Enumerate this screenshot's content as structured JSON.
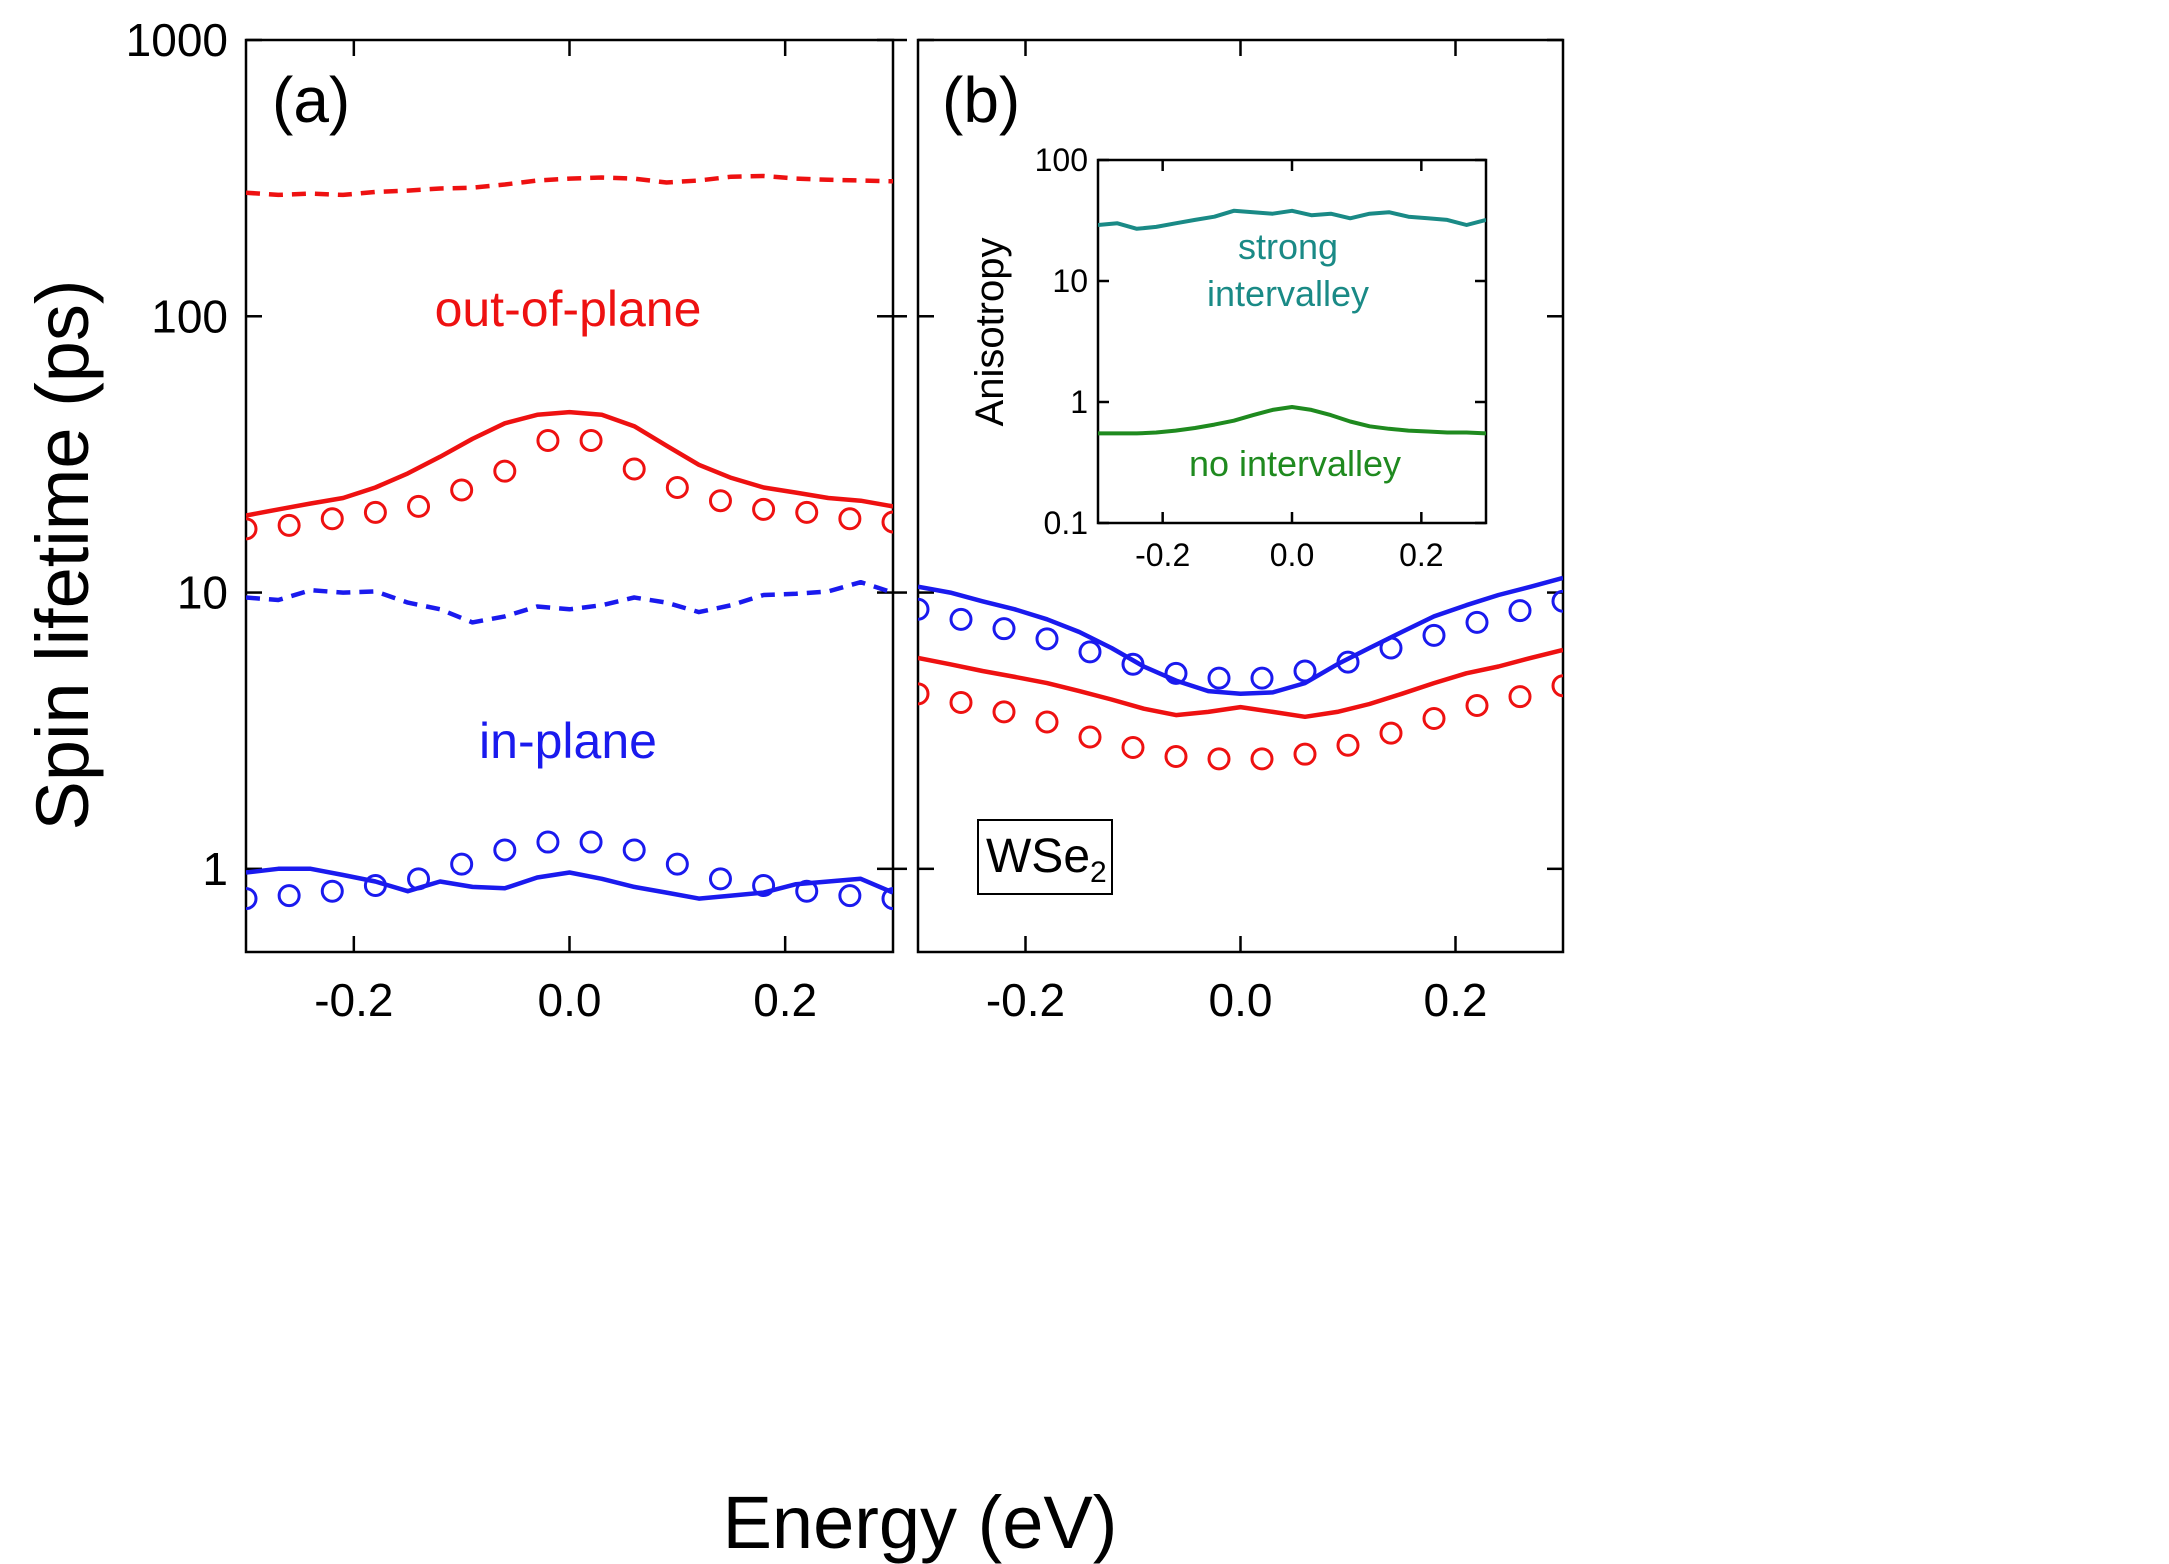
{
  "figure": {
    "xlabel": "Energy (eV)",
    "ylabel": "Spin lifetime (ps)",
    "material_label": "WSe",
    "material_subscript": "2",
    "annotation_out_of_plane": "out-of-plane",
    "annotation_in_plane": "in-plane",
    "colors": {
      "red": "#ee1111",
      "blue": "#1a1aee",
      "teal": "#1a8a86",
      "green": "#1f8a1f",
      "axis": "#000000"
    }
  },
  "chart_data": [
    {
      "type": "line",
      "panel": "(a)",
      "title": "",
      "xlabel": "Energy (eV)",
      "ylabel": "Spin lifetime (ps)",
      "xlim": [
        -0.3,
        0.3
      ],
      "ylim": [
        0.5,
        1000
      ],
      "yscale": "log",
      "xticks": [
        -0.2,
        0.0,
        0.2
      ],
      "xtick_labels": [
        "-0.2",
        "0.0",
        "0.2"
      ],
      "yticks": [
        1,
        10,
        100,
        1000
      ],
      "ytick_labels": [
        "1",
        "10",
        "100",
        "1000"
      ],
      "series": [
        {
          "name": "out-of-plane dashed",
          "style": "dashed",
          "color": "#ee1111",
          "x": [
            -0.3,
            -0.27,
            -0.24,
            -0.21,
            -0.18,
            -0.15,
            -0.12,
            -0.09,
            -0.06,
            -0.03,
            0.0,
            0.03,
            0.06,
            0.09,
            0.12,
            0.15,
            0.18,
            0.21,
            0.24,
            0.27,
            0.3
          ],
          "y": [
            280,
            275,
            278,
            275,
            282,
            285,
            290,
            292,
            300,
            310,
            315,
            318,
            315,
            305,
            310,
            320,
            322,
            315,
            312,
            310,
            308
          ]
        },
        {
          "name": "out-of-plane solid",
          "style": "solid",
          "color": "#ee1111",
          "x": [
            -0.3,
            -0.27,
            -0.24,
            -0.21,
            -0.18,
            -0.15,
            -0.12,
            -0.09,
            -0.06,
            -0.03,
            0.0,
            0.03,
            0.06,
            0.09,
            0.12,
            0.15,
            0.18,
            0.21,
            0.24,
            0.27,
            0.3
          ],
          "y": [
            19,
            20,
            21,
            22,
            24,
            27,
            31,
            36,
            41,
            44,
            45,
            44,
            40,
            34,
            29,
            26,
            24,
            23,
            22,
            21.5,
            20.5
          ]
        },
        {
          "name": "out-of-plane circles",
          "style": "markers",
          "color": "#ee1111",
          "x": [
            -0.3,
            -0.26,
            -0.22,
            -0.18,
            -0.14,
            -0.1,
            -0.06,
            -0.02,
            0.02,
            0.06,
            0.1,
            0.14,
            0.18,
            0.22,
            0.26,
            0.3
          ],
          "y": [
            17,
            17.5,
            18.5,
            19.5,
            20.5,
            23.5,
            27.5,
            35.5,
            35.5,
            28,
            24,
            21.5,
            20,
            19.5,
            18.5,
            18
          ]
        },
        {
          "name": "in-plane dashed",
          "style": "dashed",
          "color": "#1a1aee",
          "x": [
            -0.3,
            -0.27,
            -0.24,
            -0.21,
            -0.18,
            -0.15,
            -0.12,
            -0.09,
            -0.06,
            -0.03,
            0.0,
            0.03,
            0.06,
            0.09,
            0.12,
            0.15,
            0.18,
            0.21,
            0.24,
            0.27,
            0.3
          ],
          "y": [
            9.6,
            9.4,
            10.2,
            10.0,
            10.1,
            9.2,
            8.7,
            7.8,
            8.2,
            8.9,
            8.7,
            9.0,
            9.6,
            9.2,
            8.5,
            9.0,
            9.8,
            9.9,
            10.1,
            10.9,
            10.0
          ]
        },
        {
          "name": "in-plane solid",
          "style": "solid",
          "color": "#1a1aee",
          "x": [
            -0.3,
            -0.27,
            -0.24,
            -0.21,
            -0.18,
            -0.15,
            -0.12,
            -0.09,
            -0.06,
            -0.03,
            0.0,
            0.03,
            0.06,
            0.09,
            0.12,
            0.15,
            0.18,
            0.21,
            0.24,
            0.27,
            0.3
          ],
          "y": [
            0.97,
            1.0,
            1.0,
            0.95,
            0.9,
            0.83,
            0.9,
            0.86,
            0.85,
            0.93,
            0.97,
            0.92,
            0.86,
            0.82,
            0.78,
            0.8,
            0.82,
            0.88,
            0.9,
            0.92,
            0.82
          ]
        },
        {
          "name": "in-plane circles",
          "style": "markers",
          "color": "#1a1aee",
          "x": [
            -0.3,
            -0.26,
            -0.22,
            -0.18,
            -0.14,
            -0.1,
            -0.06,
            -0.02,
            0.02,
            0.06,
            0.1,
            0.14,
            0.18,
            0.22,
            0.26,
            0.3
          ],
          "y": [
            0.78,
            0.8,
            0.83,
            0.87,
            0.92,
            1.04,
            1.17,
            1.25,
            1.25,
            1.17,
            1.04,
            0.92,
            0.87,
            0.83,
            0.8,
            0.78
          ]
        }
      ]
    },
    {
      "type": "line",
      "panel": "(b)",
      "title": "",
      "xlabel": "Energy (eV)",
      "ylabel": "Spin lifetime (ps)",
      "xlim": [
        -0.3,
        0.3
      ],
      "ylim": [
        0.5,
        1000
      ],
      "yscale": "log",
      "xticks": [
        -0.2,
        0.0,
        0.2
      ],
      "xtick_labels": [
        "-0.2",
        "0.0",
        "0.2"
      ],
      "series": [
        {
          "name": "in-plane solid",
          "style": "solid",
          "color": "#1a1aee",
          "x": [
            -0.3,
            -0.27,
            -0.24,
            -0.21,
            -0.18,
            -0.15,
            -0.12,
            -0.09,
            -0.06,
            -0.03,
            0.0,
            0.03,
            0.06,
            0.09,
            0.12,
            0.15,
            0.18,
            0.21,
            0.24,
            0.27,
            0.3
          ],
          "y": [
            10.5,
            10,
            9.3,
            8.7,
            8.0,
            7.2,
            6.3,
            5.4,
            4.8,
            4.4,
            4.3,
            4.35,
            4.7,
            5.5,
            6.3,
            7.2,
            8.2,
            9.0,
            9.8,
            10.5,
            11.3
          ]
        },
        {
          "name": "in-plane circles",
          "style": "markers",
          "color": "#1a1aee",
          "x": [
            -0.3,
            -0.26,
            -0.22,
            -0.18,
            -0.14,
            -0.1,
            -0.06,
            -0.02,
            0.02,
            0.06,
            0.1,
            0.14,
            0.18,
            0.22,
            0.26,
            0.3
          ],
          "y": [
            8.7,
            8.0,
            7.4,
            6.8,
            6.1,
            5.5,
            5.1,
            4.9,
            4.9,
            5.2,
            5.6,
            6.3,
            7.0,
            7.8,
            8.6,
            9.3
          ]
        },
        {
          "name": "out-of-plane solid",
          "style": "solid",
          "color": "#ee1111",
          "x": [
            -0.3,
            -0.27,
            -0.24,
            -0.21,
            -0.18,
            -0.15,
            -0.12,
            -0.09,
            -0.06,
            -0.03,
            0.0,
            0.03,
            0.06,
            0.09,
            0.12,
            0.15,
            0.18,
            0.21,
            0.24,
            0.27,
            0.3
          ],
          "y": [
            5.8,
            5.5,
            5.2,
            4.95,
            4.7,
            4.4,
            4.1,
            3.8,
            3.6,
            3.7,
            3.85,
            3.7,
            3.55,
            3.7,
            3.95,
            4.3,
            4.7,
            5.1,
            5.4,
            5.8,
            6.2
          ]
        },
        {
          "name": "out-of-plane circles",
          "style": "markers",
          "color": "#ee1111",
          "x": [
            -0.3,
            -0.26,
            -0.22,
            -0.18,
            -0.14,
            -0.1,
            -0.06,
            -0.02,
            0.02,
            0.06,
            0.1,
            0.14,
            0.18,
            0.22,
            0.26,
            0.3
          ],
          "y": [
            4.3,
            4.0,
            3.7,
            3.4,
            3.0,
            2.75,
            2.55,
            2.5,
            2.5,
            2.6,
            2.8,
            3.1,
            3.5,
            3.9,
            4.2,
            4.6
          ]
        }
      ]
    },
    {
      "type": "line",
      "panel": "inset",
      "title": "",
      "xlabel": "",
      "ylabel": "Anisotropy",
      "xlim": [
        -0.3,
        0.3
      ],
      "ylim": [
        0.1,
        100
      ],
      "yscale": "log",
      "xticks": [
        -0.2,
        0.0,
        0.2
      ],
      "xtick_labels": [
        "-0.2",
        "0.0",
        "0.2"
      ],
      "yticks": [
        0.1,
        1,
        10,
        100
      ],
      "ytick_labels": [
        "0.1",
        "1",
        "10",
        "100"
      ],
      "annotations": [
        "strong",
        "intervalley",
        "no intervalley"
      ],
      "series": [
        {
          "name": "strong intervalley",
          "style": "solid",
          "color": "#1a8a86",
          "x": [
            -0.3,
            -0.27,
            -0.24,
            -0.21,
            -0.18,
            -0.15,
            -0.12,
            -0.09,
            -0.06,
            -0.03,
            0.0,
            0.03,
            0.06,
            0.09,
            0.12,
            0.15,
            0.18,
            0.21,
            0.24,
            0.27,
            0.3
          ],
          "y": [
            29,
            30,
            27,
            28,
            30,
            32,
            34,
            38,
            37,
            36,
            38,
            35,
            36,
            33,
            36,
            37,
            34,
            33,
            32,
            29,
            32
          ]
        },
        {
          "name": "no intervalley",
          "style": "solid",
          "color": "#1f8a1f",
          "x": [
            -0.3,
            -0.27,
            -0.24,
            -0.21,
            -0.18,
            -0.15,
            -0.12,
            -0.09,
            -0.06,
            -0.03,
            0.0,
            0.03,
            0.06,
            0.09,
            0.12,
            0.15,
            0.18,
            0.21,
            0.24,
            0.27,
            0.3
          ],
          "y": [
            0.55,
            0.55,
            0.55,
            0.56,
            0.58,
            0.61,
            0.65,
            0.7,
            0.78,
            0.86,
            0.91,
            0.86,
            0.78,
            0.69,
            0.63,
            0.6,
            0.58,
            0.57,
            0.56,
            0.56,
            0.55
          ]
        }
      ]
    }
  ]
}
